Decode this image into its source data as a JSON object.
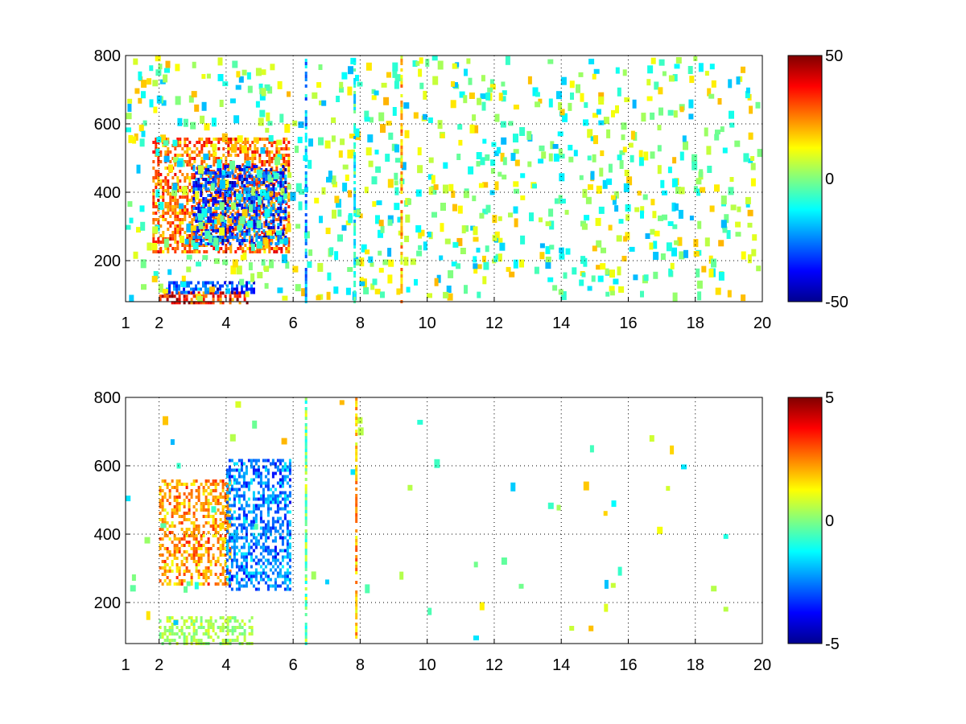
{
  "chart_data": [
    {
      "type": "heatmap",
      "title": "",
      "xlabel": "",
      "ylabel": "",
      "xlim": [
        1,
        20
      ],
      "ylim": [
        80,
        800
      ],
      "x_ticks": [
        1,
        2,
        4,
        6,
        8,
        10,
        12,
        14,
        16,
        18,
        20
      ],
      "y_ticks": [
        200,
        400,
        600,
        800
      ],
      "grid": true,
      "colormap": "jet",
      "colorbar": {
        "min": -50,
        "max": 50,
        "ticks": [
          50,
          0,
          -50
        ]
      },
      "features": [
        {
          "description_id": "warm-band",
          "x_start": 1.8,
          "x_end": 5.9,
          "y_start": 230,
          "y_end": 560,
          "value": 30
        },
        {
          "description_id": "cold-band",
          "x_start": 3.0,
          "x_end": 5.8,
          "y_start": 250,
          "y_end": 480,
          "value": -35
        },
        {
          "description_id": "low-warm",
          "x_start": 2.0,
          "x_end": 4.6,
          "y_start": 80,
          "y_end": 110,
          "value": 40
        },
        {
          "description_id": "low-cold",
          "x_start": 2.2,
          "x_end": 4.8,
          "y_start": 110,
          "y_end": 140,
          "value": -35
        }
      ],
      "vertical_stripes": [
        {
          "x": 6.35,
          "value": -20
        },
        {
          "x": 9.2,
          "value": 18
        },
        {
          "x": 7.8,
          "value": -10
        }
      ]
    },
    {
      "type": "heatmap",
      "title": "",
      "xlabel": "",
      "ylabel": "",
      "xlim": [
        1,
        20
      ],
      "ylim": [
        80,
        800
      ],
      "x_ticks": [
        1,
        2,
        4,
        6,
        8,
        10,
        12,
        14,
        16,
        18,
        20
      ],
      "y_ticks": [
        200,
        400,
        600,
        800
      ],
      "grid": true,
      "colormap": "jet",
      "colorbar": {
        "min": -5,
        "max": 5,
        "ticks": [
          5,
          0,
          -5
        ]
      },
      "features": [
        {
          "description_id": "warm-cluster",
          "x_start": 2.0,
          "x_end": 4.1,
          "y_start": 250,
          "y_end": 560,
          "value": 2.5
        },
        {
          "description_id": "cold-cluster",
          "x_start": 4.0,
          "x_end": 5.9,
          "y_start": 240,
          "y_end": 620,
          "value": -2.8
        },
        {
          "description_id": "low-green",
          "x_start": 2.0,
          "x_end": 4.8,
          "y_start": 80,
          "y_end": 160,
          "value": 0.4
        }
      ],
      "vertical_stripes": [
        {
          "x": 6.35,
          "value": 0
        },
        {
          "x": 7.85,
          "value": 2
        }
      ]
    }
  ]
}
